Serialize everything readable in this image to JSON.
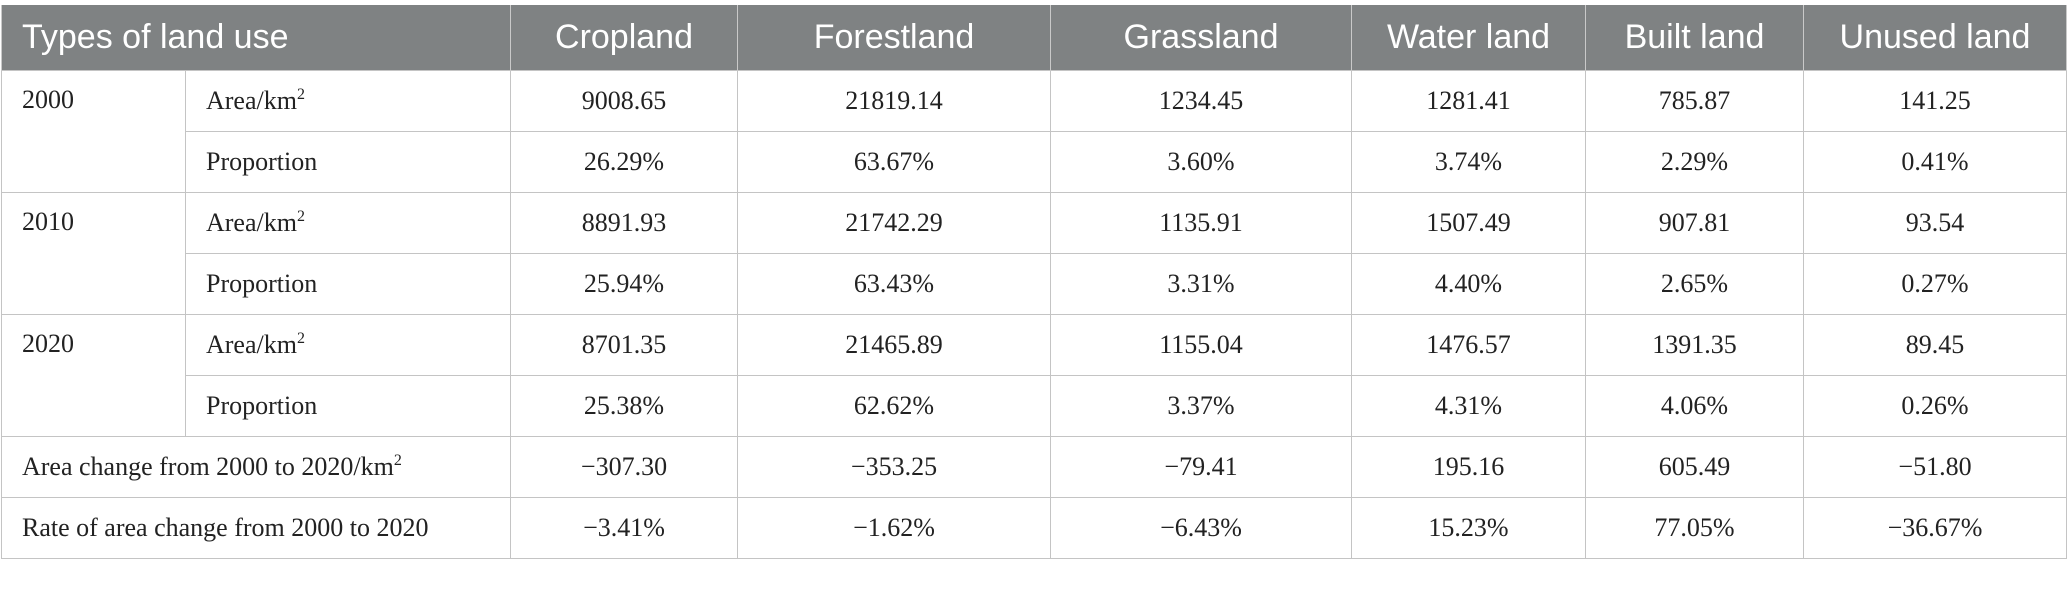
{
  "header": {
    "first": "Types of land use",
    "columns": [
      "Cropland",
      "Forestland",
      "Grassland",
      "Water land",
      "Built land",
      "Unused land"
    ]
  },
  "metric_labels": {
    "area": "Area/km",
    "area_sup": "2",
    "proportion": "Proportion"
  },
  "years": [
    {
      "year": "2000",
      "area": [
        "9008.65",
        "21819.14",
        "1234.45",
        "1281.41",
        "785.87",
        "141.25"
      ],
      "proportion": [
        "26.29%",
        "63.67%",
        "3.60%",
        "3.74%",
        "2.29%",
        "0.41%"
      ]
    },
    {
      "year": "2010",
      "area": [
        "8891.93",
        "21742.29",
        "1135.91",
        "1507.49",
        "907.81",
        "93.54"
      ],
      "proportion": [
        "25.94%",
        "63.43%",
        "3.31%",
        "4.40%",
        "2.65%",
        "0.27%"
      ]
    },
    {
      "year": "2020",
      "area": [
        "8701.35",
        "21465.89",
        "1155.04",
        "1476.57",
        "1391.35",
        "89.45"
      ],
      "proportion": [
        "25.38%",
        "62.62%",
        "3.37%",
        "4.31%",
        "4.06%",
        "0.26%"
      ]
    }
  ],
  "change_rows": [
    {
      "label": "Area change from 2000 to 2020/km",
      "label_sup": "2",
      "values": [
        "−307.30",
        "−353.25",
        "−79.41",
        "195.16",
        "605.49",
        "−51.80"
      ]
    },
    {
      "label": "Rate of area change from 2000 to 2020",
      "label_sup": "",
      "values": [
        "−3.41%",
        "−1.62%",
        "−6.43%",
        "15.23%",
        "77.05%",
        "−36.67%"
      ]
    }
  ]
}
